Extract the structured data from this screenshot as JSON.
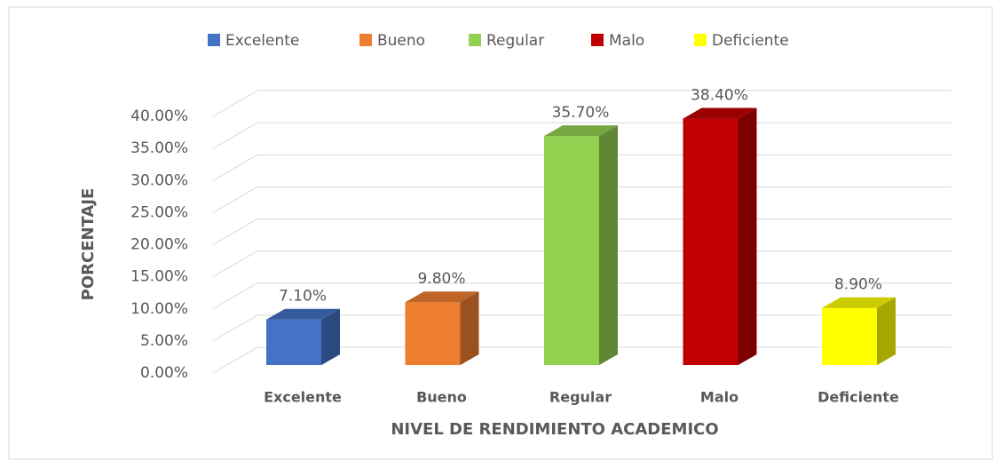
{
  "chart_data": {
    "type": "bar3d",
    "categories": [
      "Excelente",
      "Bueno",
      "Regular",
      "Malo",
      "Deficiente"
    ],
    "values": [
      7.1,
      9.8,
      35.7,
      38.4,
      8.9
    ],
    "value_labels": [
      "7.10%",
      "9.80%",
      "35.70%",
      "38.40%",
      "8.90%"
    ],
    "colors": [
      "#4472c4",
      "#ed7d31",
      "#92d050",
      "#c00000",
      "#ffff00"
    ],
    "ylim": [
      0,
      40
    ],
    "yticks": [
      {
        "value": 0,
        "label": "0.00%"
      },
      {
        "value": 5,
        "label": "5.00%"
      },
      {
        "value": 10,
        "label": "10.00%"
      },
      {
        "value": 15,
        "label": "15.00%"
      },
      {
        "value": 20,
        "label": "20.00%"
      },
      {
        "value": 25,
        "label": "25.00%"
      },
      {
        "value": 30,
        "label": "30.00%"
      },
      {
        "value": 35,
        "label": "35.00%"
      },
      {
        "value": 40,
        "label": "40.00%"
      }
    ],
    "ylabel": "PORCENTAJE",
    "xlabel": "NIVEL DE RENDIMIENTO ACADEMICO",
    "grid": true,
    "legend": "top"
  }
}
